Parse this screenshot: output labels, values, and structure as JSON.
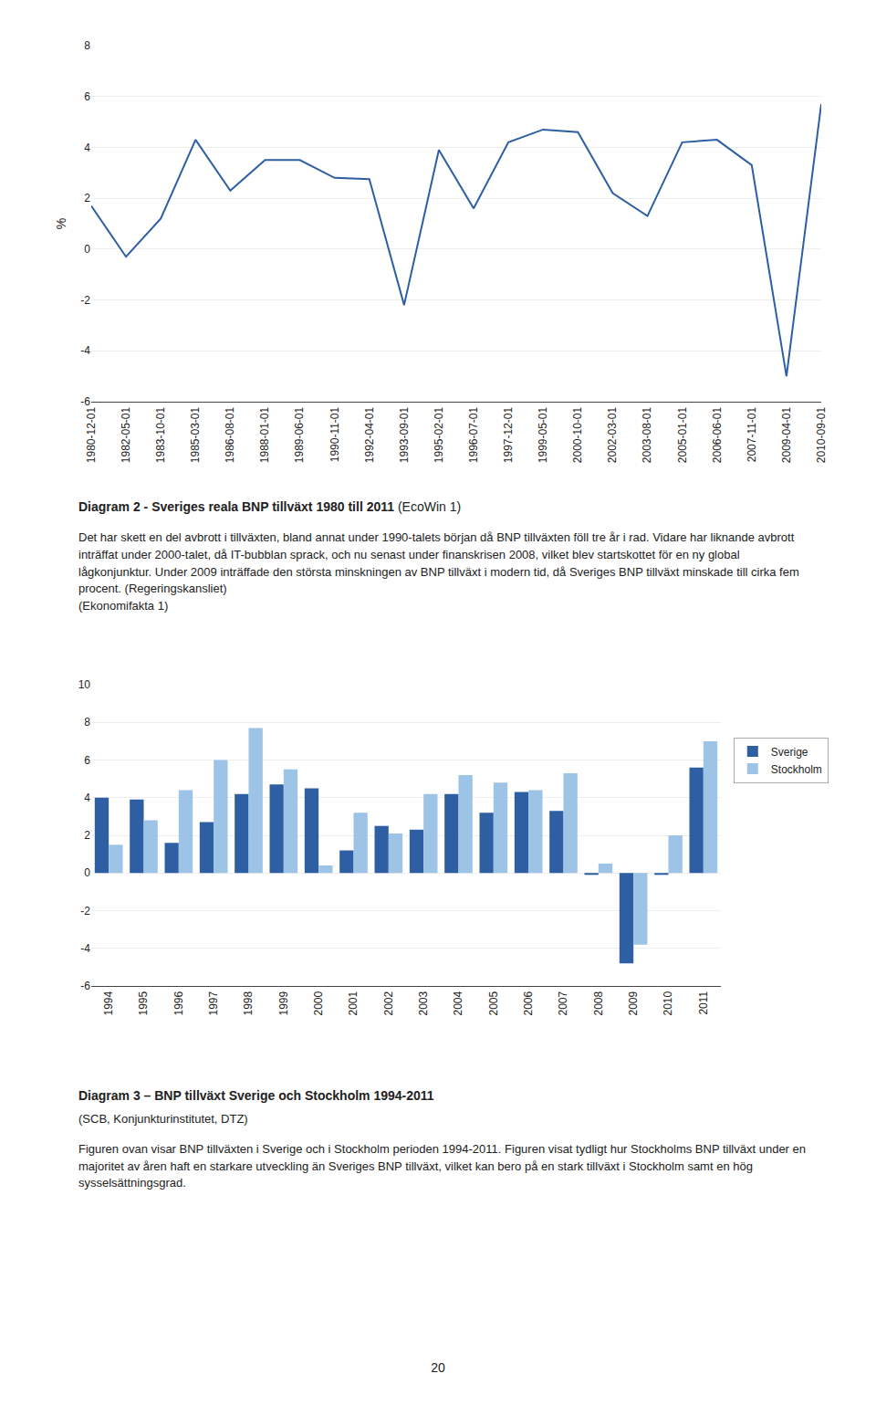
{
  "chart_data": [
    {
      "type": "line",
      "title": "Diagram 2 - Sveriges reala BNP tillväxt 1980 till 2011 ",
      "subtitle": "(EcoWin 1)",
      "annotations": [
        "Det har skett en del avbrott i tillväxten, bland annat under 1990-talets början då BNP tillväxten föll tre år i rad. Vidare har liknande avbrott inträffat under 2000-talet, då IT-bubblan sprack, och nu senast under finanskrisen 2008, vilket blev startskottet för en ny global lågkonjunktur. Under 2009 inträffade den största minskningen av BNP tillväxt i modern tid, då Sveriges BNP tillväxt minskade till cirka fem procent. (Regeringskansliet)\n(Ekonomifakta 1)"
      ],
      "categories": [
        "1980-12-01",
        "1982-05-01",
        "1983-10-01",
        "1985-03-01",
        "1986-08-01",
        "1988-01-01",
        "1989-06-01",
        "1990-11-01",
        "1992-04-01",
        "1993-09-01",
        "1995-02-01",
        "1996-07-01",
        "1997-12-01",
        "1999-05-01",
        "2000-10-01",
        "2002-03-01",
        "2003-08-01",
        "2005-01-01",
        "2006-06-01",
        "2007-11-01",
        "2009-04-01",
        "2010-09-01"
      ],
      "values": [
        1.7,
        -0.3,
        1.2,
        4.3,
        2.3,
        3.5,
        3.5,
        2.8,
        2.75,
        -2.2,
        3.9,
        1.6,
        4.2,
        4.7,
        4.6,
        2.2,
        1.3,
        4.2,
        4.3,
        3.3,
        -5.0,
        5.7
      ],
      "color": "#2e5fa3",
      "ylim": [
        -6,
        8
      ],
      "yticks": [
        -6,
        -4,
        -2,
        0,
        2,
        4,
        6,
        8
      ],
      "ylabel": "%",
      "grid": true
    },
    {
      "type": "bar",
      "title": "Diagram 3 – BNP tillväxt Sverige och Stockholm 1994-2011",
      "subtitle": "(SCB, Konjunkturinstitutet, DTZ)",
      "annotations": [
        "Figuren ovan visar BNP tillväxten i Sverige och i Stockholm perioden 1994-2011. Figuren visat tydligt hur Stockholms BNP tillväxt under en majoritet av åren haft en starkare utveckling än Sveriges BNP tillväxt, vilket kan bero på en stark tillväxt i Stockholm samt en hög sysselsättningsgrad.",
        "20"
      ],
      "categories": [
        "1994",
        "1995",
        "1996",
        "1997",
        "1998",
        "1999",
        "2000",
        "2001",
        "2002",
        "2003",
        "2004",
        "2005",
        "2006",
        "2007",
        "2008",
        "2009",
        "2010",
        "2011"
      ],
      "series": [
        {
          "name": "Sverige",
          "color": "#2e5fa3",
          "values": [
            4.0,
            3.9,
            1.6,
            2.7,
            4.2,
            4.7,
            4.5,
            1.2,
            2.5,
            2.3,
            4.2,
            3.2,
            4.3,
            3.3,
            -0.1,
            -4.8,
            -0.1,
            5.6
          ]
        },
        {
          "name": "Stockholm",
          "color": "#9dc3e6",
          "values": [
            1.5,
            2.8,
            4.4,
            6.0,
            7.7,
            5.5,
            0.4,
            3.2,
            2.1,
            4.2,
            5.2,
            4.8,
            4.4,
            5.3,
            0.5,
            -3.8,
            2.0,
            7.0
          ]
        }
      ],
      "ylim": [
        -6,
        10
      ],
      "yticks": [
        -6,
        -4,
        -2,
        0,
        2,
        4,
        6,
        8,
        10
      ],
      "grid": true,
      "legend": "right"
    }
  ]
}
